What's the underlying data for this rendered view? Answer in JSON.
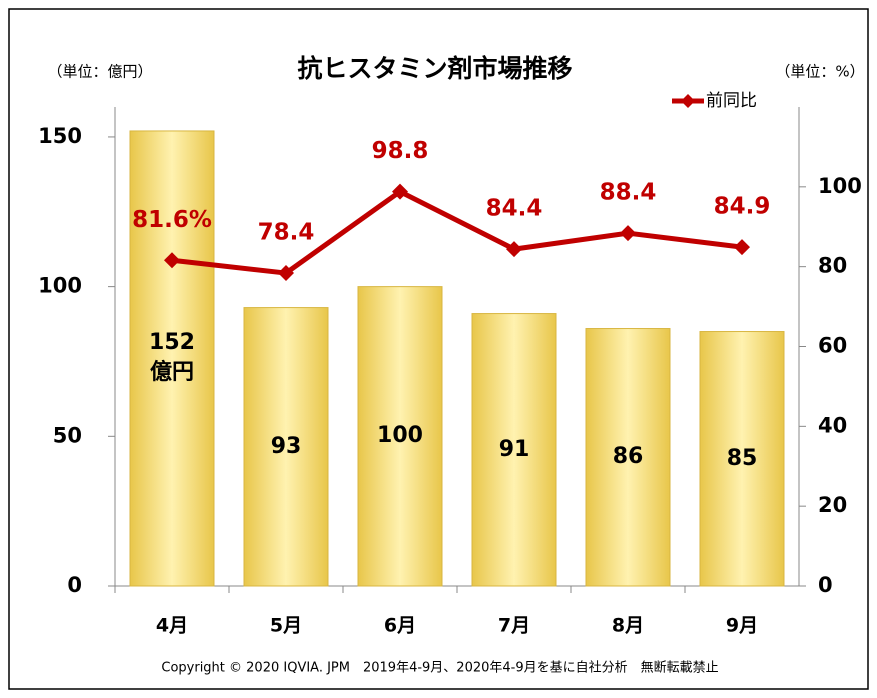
{
  "chart_data": {
    "type": "bar-line",
    "title": "抗ヒスタミン剤市場推移",
    "y_unit": "（単位：億円）",
    "y2_unit": "（単位：%）",
    "footnote": "Copyright © 2020 IQVIA. JPM　2019年4-9月、2020年4-9月を基に自社分析　無断転載禁止",
    "categories": [
      "4月",
      "5月",
      "6月",
      "7月",
      "8月",
      "9月"
    ],
    "series": [
      {
        "name": "市場規模",
        "type": "bar",
        "color": "#f5dc7a",
        "values": [
          152,
          93,
          100,
          91,
          86,
          85
        ],
        "value_labels": [
          "152\n億円",
          "93",
          "100",
          "91",
          "86",
          "85"
        ]
      },
      {
        "name": "前同比",
        "type": "line",
        "axis": "y2",
        "color": "#c00000",
        "values": [
          81.6,
          78.4,
          98.8,
          84.4,
          88.4,
          84.9
        ],
        "value_labels": [
          "81.6%",
          "78.4",
          "98.8",
          "84.4",
          "88.4",
          "84.9"
        ]
      }
    ],
    "ylim": [
      0,
      160
    ],
    "yticks": [
      0,
      50,
      100,
      150
    ],
    "y2lim": [
      0,
      120
    ],
    "y2ticks": [
      0,
      20,
      40,
      60,
      80,
      100
    ],
    "legend": "top-right"
  }
}
